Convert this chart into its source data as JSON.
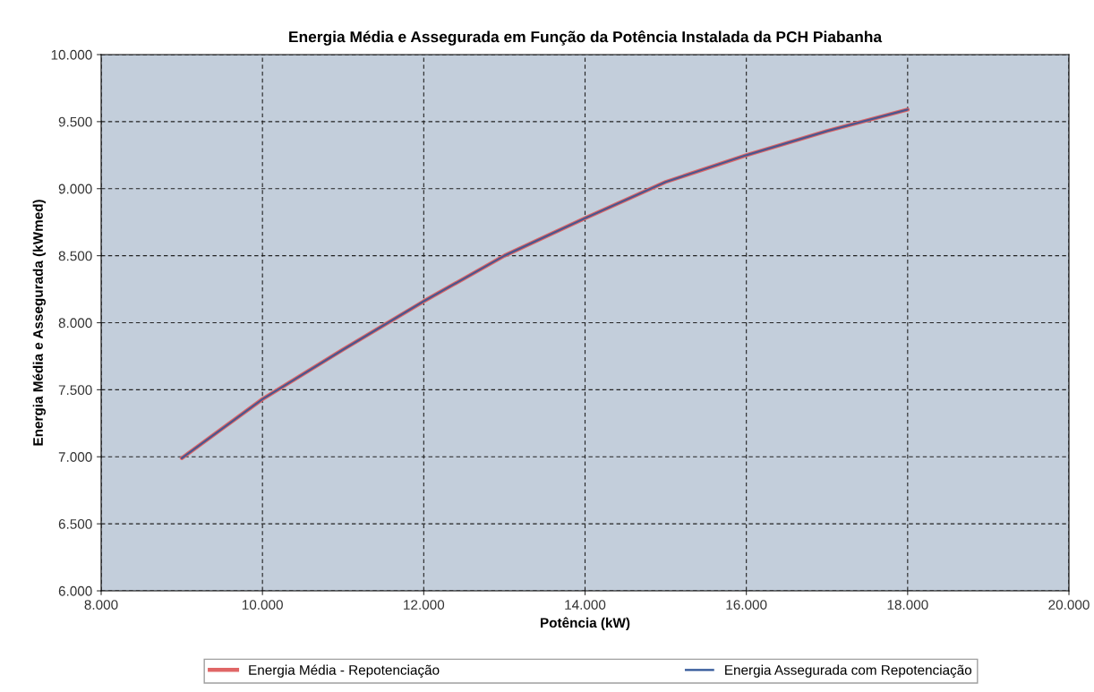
{
  "chart_data": {
    "type": "line",
    "title": "Energia Média e Assegurada em Função da Potência Instalada da PCH Piabanha",
    "xlabel": "Potência (kW)",
    "ylabel": "Energia Média e Assegurada (kWmed)",
    "x": [
      9000,
      10000,
      11000,
      12000,
      13000,
      14000,
      15000,
      16000,
      17000,
      18000
    ],
    "series": [
      {
        "name": "Energia Média - Repotenciação",
        "color": "#e06666",
        "values": [
          6990,
          7430,
          7800,
          8160,
          8500,
          8780,
          9050,
          9250,
          9430,
          9590
        ]
      },
      {
        "name": "Energia Assegurada com Repotenciação",
        "color": "#2f5597",
        "values": [
          6990,
          7430,
          7800,
          8160,
          8500,
          8780,
          9050,
          9250,
          9430,
          9590
        ]
      }
    ],
    "xlim": [
      8000,
      20000
    ],
    "xticks": [
      {
        "value": 8000,
        "label": "8.000"
      },
      {
        "value": 10000,
        "label": "10.000"
      },
      {
        "value": 12000,
        "label": "12.000"
      },
      {
        "value": 14000,
        "label": "14.000"
      },
      {
        "value": 16000,
        "label": "16.000"
      },
      {
        "value": 18000,
        "label": "18.000"
      },
      {
        "value": 20000,
        "label": "20.000"
      }
    ],
    "ylim": [
      6000,
      10000
    ],
    "yticks": [
      {
        "value": 6000,
        "label": "6.000"
      },
      {
        "value": 6500,
        "label": "6.500"
      },
      {
        "value": 7000,
        "label": "7.000"
      },
      {
        "value": 7500,
        "label": "7.500"
      },
      {
        "value": 8000,
        "label": "8.000"
      },
      {
        "value": 8500,
        "label": "8.500"
      },
      {
        "value": 9000,
        "label": "9.000"
      },
      {
        "value": 9500,
        "label": "9.500"
      },
      {
        "value": 10000,
        "label": "10.000"
      }
    ],
    "grid": true,
    "legend": "bottom",
    "line_style": "solid",
    "marker": "none"
  }
}
